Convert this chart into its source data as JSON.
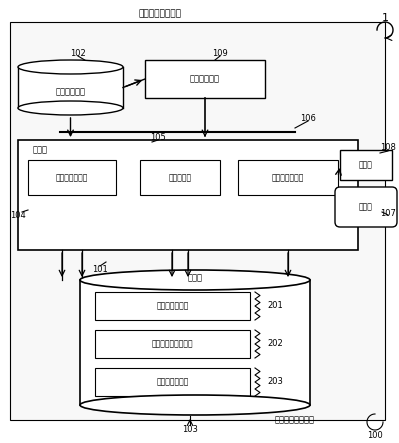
{
  "title": "配送计划制定系统",
  "label_1": "1",
  "label_100": "100",
  "label_101": "101",
  "label_102": "102",
  "label_103": "103",
  "label_104": "104",
  "label_105": "105",
  "label_106": "106",
  "label_107": "107",
  "label_108": "108",
  "label_109": "109",
  "label_201": "201",
  "label_202": "202",
  "label_203": "203",
  "text_system": "配送计划制定系统",
  "text_device": "配送计划制定装置",
  "text_db": "配送业绩数据",
  "text_dynamic": "动态管理系统",
  "text_processing": "处理部",
  "text_105": "105",
  "text_shipment": "发货规则生成部",
  "text_attribute": "属性判断部",
  "text_delivery": "配送计划计算部",
  "text_storage": "存储部",
  "text_goods": "货物属性存储部",
  "text_vehicle": "配送车辆属性存储部",
  "text_rule": "发货规则存储部",
  "text_input": "输入部",
  "text_display": "显示部",
  "bg_color": "#ffffff",
  "box_color": "#ffffff",
  "border_color": "#000000",
  "outer_box_color": "#f0f0f0"
}
